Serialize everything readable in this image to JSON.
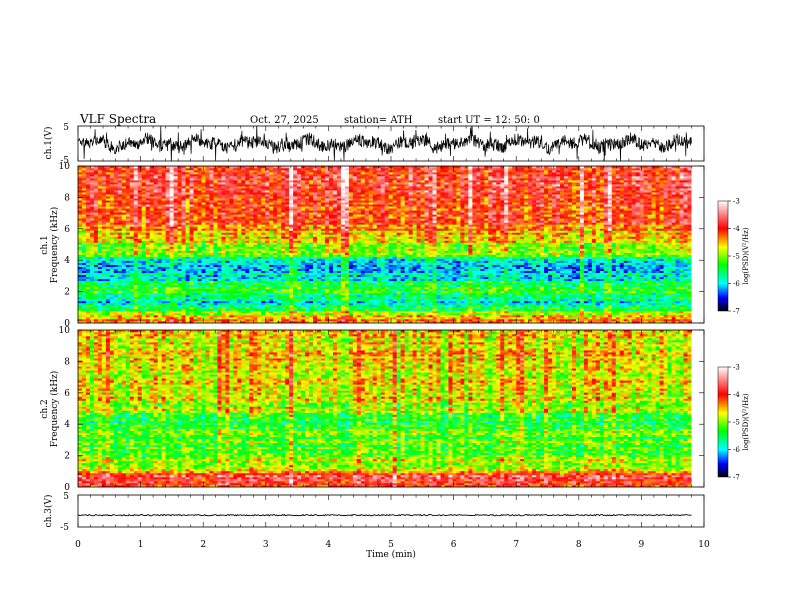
{
  "chart_data": {
    "type": "heatmap",
    "header": {
      "title": "VLF  Spectra",
      "date": "Oct. 27, 2025",
      "station": "station= ATH",
      "start": "start  UT  =    12: 50: 0"
    },
    "xlabel": "Time  (min)",
    "xlim": [
      0,
      10
    ],
    "x_ticks": [
      "0",
      "1",
      "2",
      "3",
      "4",
      "5",
      "6",
      "7",
      "8",
      "9",
      "10"
    ],
    "data_end_min": 9.8,
    "panels": [
      {
        "kind": "waveform",
        "label": "ch.1(V)",
        "ylim": [
          -5,
          5
        ],
        "y_ticks": [
          "5",
          "-5"
        ],
        "amplitude_range": [
          -3,
          3
        ]
      },
      {
        "kind": "spectrogram",
        "label": "ch.1",
        "ylabel": "Frequency  (kHz)",
        "ylim": [
          0,
          10
        ],
        "y_ticks": [
          "0",
          "2",
          "4",
          "6",
          "8",
          "10"
        ],
        "colorbar_label": "log(PSD)(V²/Hz)",
        "colorbar_range": [
          -7,
          -3
        ],
        "colorbar_ticks": [
          "-3",
          "-4",
          "-5",
          "-6",
          "-7"
        ],
        "frequency_profile_log_psd": [
          {
            "f": 0.0,
            "v": -4.2
          },
          {
            "f": 0.5,
            "v": -4.6
          },
          {
            "f": 1.0,
            "v": -5.6
          },
          {
            "f": 1.5,
            "v": -5.9
          },
          {
            "f": 2.0,
            "v": -5.3
          },
          {
            "f": 2.5,
            "v": -5.6
          },
          {
            "f": 3.0,
            "v": -5.9
          },
          {
            "f": 3.5,
            "v": -6.1
          },
          {
            "f": 4.0,
            "v": -5.8
          },
          {
            "f": 4.5,
            "v": -5.1
          },
          {
            "f": 5.0,
            "v": -4.9
          },
          {
            "f": 5.5,
            "v": -4.6
          },
          {
            "f": 6.0,
            "v": -4.3
          },
          {
            "f": 7.0,
            "v": -4.0
          },
          {
            "f": 8.0,
            "v": -3.9
          },
          {
            "f": 9.0,
            "v": -3.9
          },
          {
            "f": 10.0,
            "v": -4.0
          }
        ]
      },
      {
        "kind": "spectrogram",
        "label": "ch.2",
        "ylabel": "Frequency  (kHz)",
        "ylim": [
          0,
          10
        ],
        "y_ticks": [
          "0",
          "2",
          "4",
          "6",
          "8",
          "10"
        ],
        "colorbar_label": "log(PSD)(V²/Hz)",
        "colorbar_range": [
          -7,
          -3
        ],
        "colorbar_ticks": [
          "-3",
          "-4",
          "-5",
          "-6",
          "-7"
        ],
        "frequency_profile_log_psd": [
          {
            "f": 0.0,
            "v": -4.0
          },
          {
            "f": 0.3,
            "v": -3.8
          },
          {
            "f": 0.8,
            "v": -3.9
          },
          {
            "f": 1.2,
            "v": -4.8
          },
          {
            "f": 2.0,
            "v": -5.0
          },
          {
            "f": 3.0,
            "v": -5.3
          },
          {
            "f": 3.5,
            "v": -4.9
          },
          {
            "f": 4.0,
            "v": -5.6
          },
          {
            "f": 4.5,
            "v": -5.2
          },
          {
            "f": 5.0,
            "v": -5.0
          },
          {
            "f": 6.0,
            "v": -4.8
          },
          {
            "f": 8.0,
            "v": -4.7
          },
          {
            "f": 10.0,
            "v": -4.7
          }
        ]
      },
      {
        "kind": "waveform",
        "label": "ch.3(V)",
        "ylim": [
          -5,
          5
        ],
        "y_ticks": [
          "5",
          "-5"
        ],
        "amplitude_range": [
          -1.5,
          -1.1
        ]
      }
    ]
  }
}
